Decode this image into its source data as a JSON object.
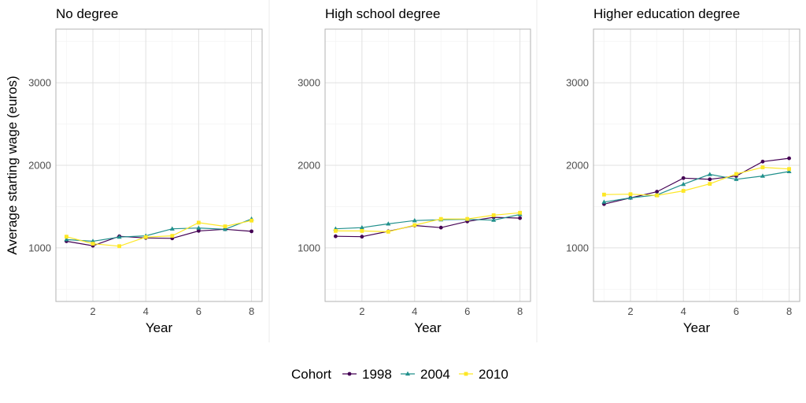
{
  "chart_data": {
    "type": "line",
    "ylabel": "Average starting wage (euros)",
    "xlabel": "Year",
    "x": [
      1,
      2,
      3,
      4,
      5,
      6,
      7,
      8
    ],
    "xlim": [
      0.6,
      8.4
    ],
    "ylim": [
      350,
      3650
    ],
    "x_ticks": [
      "2",
      "4",
      "6",
      "8"
    ],
    "y_ticks": [
      "1000",
      "2000",
      "3000"
    ],
    "grid": true,
    "legend": {
      "title": "Cohort",
      "position": "bottom",
      "entries": [
        "1998",
        "2004",
        "2010"
      ]
    },
    "series_colors": {
      "1998": "#440154",
      "2004": "#21908c",
      "2010": "#fde725"
    },
    "series_markers": {
      "1998": "circle",
      "2004": "triangle",
      "2010": "square"
    },
    "panels": [
      {
        "title": "No degree",
        "series": [
          {
            "name": "1998",
            "values": [
              1080,
              1025,
              1140,
              1120,
              1115,
              1205,
              1225,
              1200
            ]
          },
          {
            "name": "2004",
            "values": [
              1100,
              1080,
              1130,
              1145,
              1230,
              1240,
              1225,
              1350
            ]
          },
          {
            "name": "2010",
            "values": [
              1135,
              1050,
              1020,
              1130,
              1145,
              1305,
              1260,
              1330
            ]
          }
        ]
      },
      {
        "title": "High school degree",
        "series": [
          {
            "name": "1998",
            "values": [
              1140,
              1135,
              1200,
              1270,
              1245,
              1320,
              1370,
              1360
            ]
          },
          {
            "name": "2004",
            "values": [
              1230,
              1245,
              1290,
              1330,
              1340,
              1345,
              1335,
              1405
            ]
          },
          {
            "name": "2010",
            "values": [
              1205,
              1205,
              1195,
              1275,
              1350,
              1350,
              1395,
              1425
            ]
          }
        ]
      },
      {
        "title": "Higher education degree",
        "series": [
          {
            "name": "1998",
            "values": [
              1530,
              1605,
              1680,
              1845,
              1830,
              1870,
              2045,
              2085
            ]
          },
          {
            "name": "2004",
            "values": [
              1555,
              1605,
              1640,
              1770,
              1890,
              1830,
              1870,
              1925
            ]
          },
          {
            "name": "2010",
            "values": [
              1645,
              1650,
              1635,
              1690,
              1775,
              1895,
              1975,
              1955
            ]
          }
        ]
      }
    ]
  }
}
